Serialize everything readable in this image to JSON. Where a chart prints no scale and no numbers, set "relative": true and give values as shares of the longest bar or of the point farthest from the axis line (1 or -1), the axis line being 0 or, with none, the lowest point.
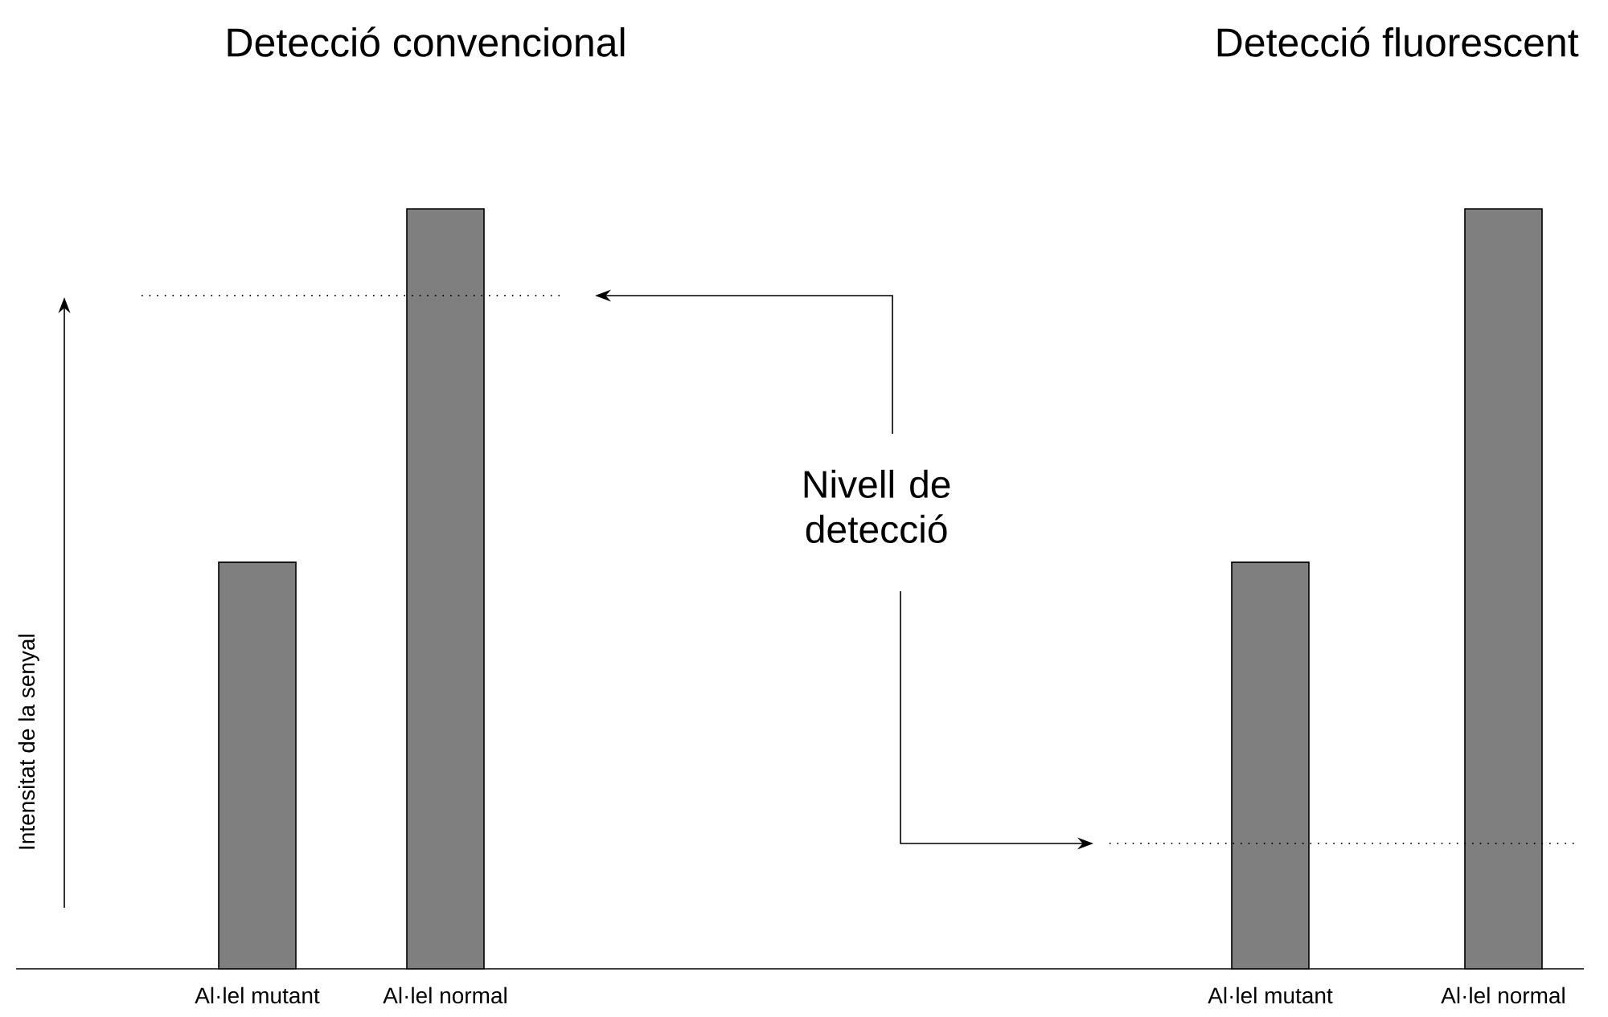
{
  "chart_data": [
    {
      "type": "bar",
      "title": "Detecció convencional",
      "ylabel": "Intensitat de la senyal",
      "categories": [
        "Al·lel mutant",
        "Al·lel normal"
      ],
      "values": [
        0.535,
        1
      ],
      "color": "#7f7f7f",
      "relative": true,
      "ref_lines": [
        {
          "axis": "y",
          "value": 0.886,
          "line_style": "dotted"
        }
      ],
      "annotations": [
        "Nivell de detecció"
      ]
    },
    {
      "type": "bar",
      "title": "Detecció fluorescent",
      "categories": [
        "Al·lel mutant",
        "Al·lel normal"
      ],
      "values": [
        0.535,
        1
      ],
      "color": "#7f7f7f",
      "relative": true,
      "ref_lines": [
        {
          "axis": "y",
          "value": 0.165,
          "line_style": "dotted"
        }
      ]
    }
  ]
}
